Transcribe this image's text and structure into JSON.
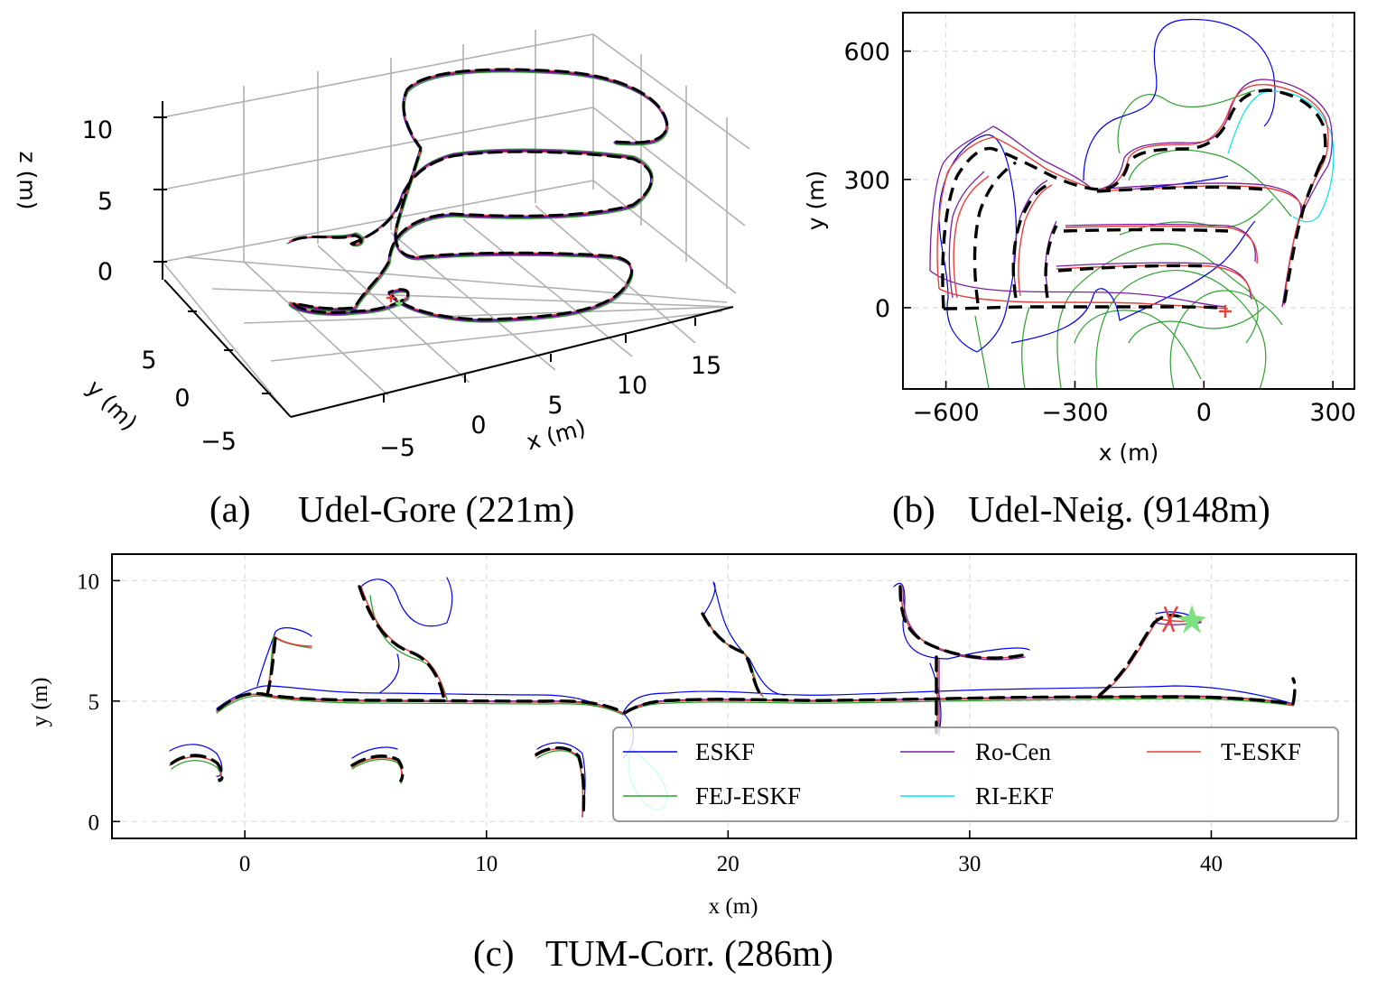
{
  "chart_data": [
    {
      "type": "line",
      "caption_label": "(a)",
      "caption_title": "Udel-Gore (221m)",
      "xlabel": "x (m)",
      "ylabel": "y (m)",
      "zlabel": "z (m)",
      "xticks": [
        "−5",
        "0",
        "5",
        "10",
        "15"
      ],
      "yticks": [
        "−5",
        "0",
        "5"
      ],
      "zticks": [
        "0",
        "5",
        "10"
      ],
      "xlim": [
        -8,
        18
      ],
      "ylim": [
        -7,
        7
      ],
      "zlim": [
        0,
        12
      ],
      "grid": true
    },
    {
      "type": "line",
      "caption_label": "(b)",
      "caption_title": "Udel-Neig. (9148m)",
      "xlabel": "x (m)",
      "ylabel": "y (m)",
      "xticks": [
        "−600",
        "−300",
        "0",
        "300"
      ],
      "yticks": [
        "0",
        "300",
        "600"
      ],
      "xlim": [
        -700,
        350
      ],
      "ylim": [
        -190,
        690
      ],
      "grid": true
    },
    {
      "type": "line",
      "caption_label": "(c)",
      "caption_title": "TUM-Corr. (286m)",
      "xlabel": "x (m)",
      "ylabel": "y (m)",
      "xticks": [
        "0",
        "10",
        "20",
        "30",
        "40"
      ],
      "yticks": [
        "0",
        "5",
        "10"
      ],
      "xlim": [
        -5.5,
        46
      ],
      "ylim": [
        -0.7,
        11.1
      ],
      "grid": true,
      "legend_position": "lower-right",
      "series": [
        {
          "name": "ESKF",
          "color": "#0000ee"
        },
        {
          "name": "FEJ-ESKF",
          "color": "#2ca02c"
        },
        {
          "name": "Ro-Cen",
          "color": "#7b1fa2"
        },
        {
          "name": "RI-EKF",
          "color": "#00e5ee"
        },
        {
          "name": "T-ESKF",
          "color": "#e8403a"
        }
      ]
    }
  ]
}
